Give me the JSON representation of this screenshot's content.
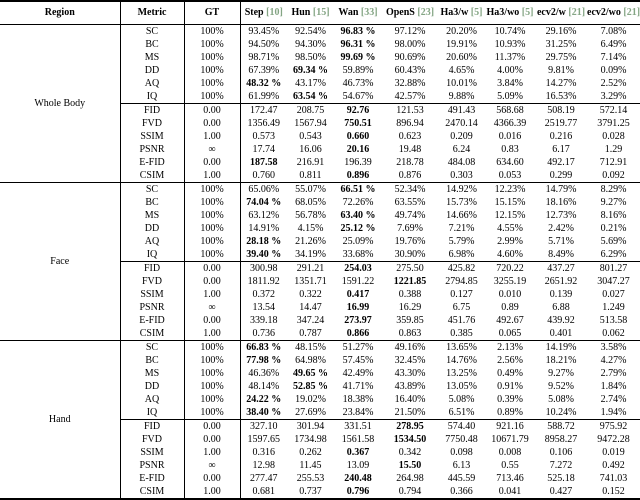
{
  "colors": {
    "citation": "#84a584",
    "text": "#000000",
    "background": "#ffffff"
  },
  "table": {
    "header": {
      "region": "Region",
      "metric": "Metric",
      "gt": "GT",
      "methods": [
        {
          "name": "Step",
          "cite": "[10]"
        },
        {
          "name": "Hun",
          "cite": "[15]"
        },
        {
          "name": "Wan",
          "cite": "[33]"
        },
        {
          "name": "OpenS",
          "cite": "[23]"
        },
        {
          "name": "Ha3/w",
          "cite": "[5]"
        },
        {
          "name": "Ha3/wo",
          "cite": "[5]"
        },
        {
          "name": "ecv2/w",
          "cite": "[21]"
        },
        {
          "name": "ecv2/wo",
          "cite": "[21]"
        }
      ]
    },
    "regions": [
      {
        "name": "Whole Body",
        "rows": [
          {
            "metric": "SC",
            "gt": "100%",
            "values": [
              "93.45%",
              "92.54%",
              "96.83 %",
              "97.12%",
              "20.20%",
              "10.74%",
              "29.16%",
              "7.08%"
            ],
            "bold": 2
          },
          {
            "metric": "BC",
            "gt": "100%",
            "values": [
              "94.50%",
              "94.30%",
              "96.31 %",
              "98.00%",
              "19.91%",
              "10.93%",
              "31.25%",
              "6.49%"
            ],
            "bold": 2
          },
          {
            "metric": "MS",
            "gt": "100%",
            "values": [
              "98.71%",
              "98.50%",
              "99.69 %",
              "90.69%",
              "20.60%",
              "11.37%",
              "29.75%",
              "7.14%"
            ],
            "bold": 2
          },
          {
            "metric": "DD",
            "gt": "100%",
            "values": [
              "67.39%",
              "69.34 %",
              "59.89%",
              "60.43%",
              "4.65%",
              "4.00%",
              "9.81%",
              "0.09%"
            ],
            "bold": 1
          },
          {
            "metric": "AQ",
            "gt": "100%",
            "values": [
              "48.32 %",
              "43.17%",
              "46.73%",
              "32.88%",
              "10.01%",
              "3.84%",
              "14.27%",
              "2.52%"
            ],
            "bold": 0
          },
          {
            "metric": "IQ",
            "gt": "100%",
            "values": [
              "61.99%",
              "63.54 %",
              "54.67%",
              "42.57%",
              "9.88%",
              "5.09%",
              "16.53%",
              "3.29%"
            ],
            "bold": 1
          },
          {
            "metric": "FID",
            "gt": "0.00",
            "values": [
              "172.47",
              "208.75",
              "92.76",
              "121.53",
              "491.43",
              "568.68",
              "508.19",
              "572.14"
            ],
            "bold": 2
          },
          {
            "metric": "FVD",
            "gt": "0.00",
            "values": [
              "1356.49",
              "1567.94",
              "750.51",
              "896.94",
              "2470.14",
              "4366.39",
              "2519.77",
              "3791.25"
            ],
            "bold": 2
          },
          {
            "metric": "SSIM",
            "gt": "1.00",
            "values": [
              "0.573",
              "0.543",
              "0.660",
              "0.623",
              "0.209",
              "0.016",
              "0.216",
              "0.028"
            ],
            "bold": 2
          },
          {
            "metric": "PSNR",
            "gt": "∞",
            "values": [
              "17.74",
              "16.06",
              "20.16",
              "19.48",
              "6.24",
              "0.83",
              "6.17",
              "1.29"
            ],
            "bold": 2
          },
          {
            "metric": "E-FID",
            "gt": "0.00",
            "values": [
              "187.58",
              "216.91",
              "196.39",
              "218.78",
              "484.08",
              "634.60",
              "492.17",
              "712.91"
            ],
            "bold": 0
          },
          {
            "metric": "CSIM",
            "gt": "1.00",
            "values": [
              "0.760",
              "0.811",
              "0.896",
              "0.876",
              "0.303",
              "0.053",
              "0.299",
              "0.092"
            ],
            "bold": 2
          }
        ]
      },
      {
        "name": "Face",
        "rows": [
          {
            "metric": "SC",
            "gt": "100%",
            "values": [
              "65.06%",
              "55.07%",
              "66.51 %",
              "52.34%",
              "14.92%",
              "12.23%",
              "14.79%",
              "8.29%"
            ],
            "bold": 2
          },
          {
            "metric": "BC",
            "gt": "100%",
            "values": [
              "74.04 %",
              "68.05%",
              "72.26%",
              "63.55%",
              "15.73%",
              "15.15%",
              "18.16%",
              "9.27%"
            ],
            "bold": 0
          },
          {
            "metric": "MS",
            "gt": "100%",
            "values": [
              "63.12%",
              "56.78%",
              "63.40 %",
              "49.74%",
              "14.66%",
              "12.15%",
              "12.73%",
              "8.16%"
            ],
            "bold": 2
          },
          {
            "metric": "DD",
            "gt": "100%",
            "values": [
              "14.91%",
              "4.15%",
              "25.12 %",
              "7.69%",
              "7.21%",
              "4.55%",
              "2.42%",
              "0.21%"
            ],
            "bold": 2
          },
          {
            "metric": "AQ",
            "gt": "100%",
            "values": [
              "28.18 %",
              "21.26%",
              "25.09%",
              "19.76%",
              "5.79%",
              "2.99%",
              "5.71%",
              "5.69%"
            ],
            "bold": 0
          },
          {
            "metric": "IQ",
            "gt": "100%",
            "values": [
              "39.40 %",
              "34.19%",
              "33.68%",
              "30.90%",
              "6.98%",
              "4.60%",
              "8.49%",
              "6.29%"
            ],
            "bold": 0
          },
          {
            "metric": "FID",
            "gt": "0.00",
            "values": [
              "300.98",
              "291.21",
              "254.03",
              "275.50",
              "425.82",
              "720.22",
              "437.27",
              "801.27"
            ],
            "bold": 2
          },
          {
            "metric": "FVD",
            "gt": "0.00",
            "values": [
              "1811.92",
              "1351.71",
              "1591.22",
              "1221.85",
              "2794.85",
              "3255.19",
              "2651.92",
              "3047.27"
            ],
            "bold": 3
          },
          {
            "metric": "SSIM",
            "gt": "1.00",
            "values": [
              "0.372",
              "0.322",
              "0.417",
              "0.388",
              "0.127",
              "0.010",
              "0.139",
              "0.027"
            ],
            "bold": 2
          },
          {
            "metric": "PSNR",
            "gt": "∞",
            "values": [
              "13.54",
              "14.47",
              "16.99",
              "16.29",
              "6.75",
              "0.89",
              "6.88",
              "1.249"
            ],
            "bold": 2
          },
          {
            "metric": "E-FID",
            "gt": "0.00",
            "values": [
              "339.18",
              "347.24",
              "273.97",
              "359.85",
              "451.76",
              "492.67",
              "439.92",
              "513.58"
            ],
            "bold": 2
          },
          {
            "metric": "CSIM",
            "gt": "1.00",
            "values": [
              "0.736",
              "0.787",
              "0.866",
              "0.863",
              "0.385",
              "0.065",
              "0.401",
              "0.062"
            ],
            "bold": 2
          }
        ]
      },
      {
        "name": "Hand",
        "rows": [
          {
            "metric": "SC",
            "gt": "100%",
            "values": [
              "66.83 %",
              "48.15%",
              "51.27%",
              "49.16%",
              "13.65%",
              "2.13%",
              "14.19%",
              "3.58%"
            ],
            "bold": 0
          },
          {
            "metric": "BC",
            "gt": "100%",
            "values": [
              "77.98 %",
              "64.98%",
              "57.45%",
              "32.45%",
              "14.76%",
              "2.56%",
              "18.21%",
              "4.27%"
            ],
            "bold": 0
          },
          {
            "metric": "MS",
            "gt": "100%",
            "values": [
              "46.36%",
              "49.65 %",
              "42.49%",
              "43.30%",
              "13.25%",
              "0.49%",
              "9.27%",
              "2.79%"
            ],
            "bold": 1
          },
          {
            "metric": "DD",
            "gt": "100%",
            "values": [
              "48.14%",
              "52.85 %",
              "41.71%",
              "43.89%",
              "13.05%",
              "0.91%",
              "9.52%",
              "1.84%"
            ],
            "bold": 1
          },
          {
            "metric": "AQ",
            "gt": "100%",
            "values": [
              "24.22 %",
              "19.02%",
              "18.38%",
              "16.40%",
              "5.08%",
              "0.39%",
              "5.08%",
              "2.74%"
            ],
            "bold": 0
          },
          {
            "metric": "IQ",
            "gt": "100%",
            "values": [
              "38.40 %",
              "27.69%",
              "23.84%",
              "21.50%",
              "6.51%",
              "0.89%",
              "10.24%",
              "1.94%"
            ],
            "bold": 0
          },
          {
            "metric": "FID",
            "gt": "0.00",
            "values": [
              "327.10",
              "301.94",
              "331.51",
              "278.95",
              "574.40",
              "921.16",
              "588.72",
              "975.92"
            ],
            "bold": 3
          },
          {
            "metric": "FVD",
            "gt": "0.00",
            "values": [
              "1597.65",
              "1734.98",
              "1561.58",
              "1534.50",
              "7750.48",
              "10671.79",
              "8958.27",
              "9472.28"
            ],
            "bold": 3
          },
          {
            "metric": "SSIM",
            "gt": "1.00",
            "values": [
              "0.316",
              "0.262",
              "0.367",
              "0.342",
              "0.098",
              "0.008",
              "0.106",
              "0.019"
            ],
            "bold": 2
          },
          {
            "metric": "PSNR",
            "gt": "∞",
            "values": [
              "12.98",
              "11.45",
              "13.09",
              "15.50",
              "6.13",
              "0.55",
              "7.272",
              "0.492"
            ],
            "bold": 3
          },
          {
            "metric": "E-FID",
            "gt": "0.00",
            "values": [
              "277.47",
              "255.53",
              "240.48",
              "264.98",
              "445.59",
              "713.46",
              "525.18",
              "741.03"
            ],
            "bold": 2
          },
          {
            "metric": "CSIM",
            "gt": "1.00",
            "values": [
              "0.681",
              "0.737",
              "0.796",
              "0.794",
              "0.366",
              "0.041",
              "0.427",
              "0.152"
            ],
            "bold": 2
          }
        ]
      }
    ]
  }
}
